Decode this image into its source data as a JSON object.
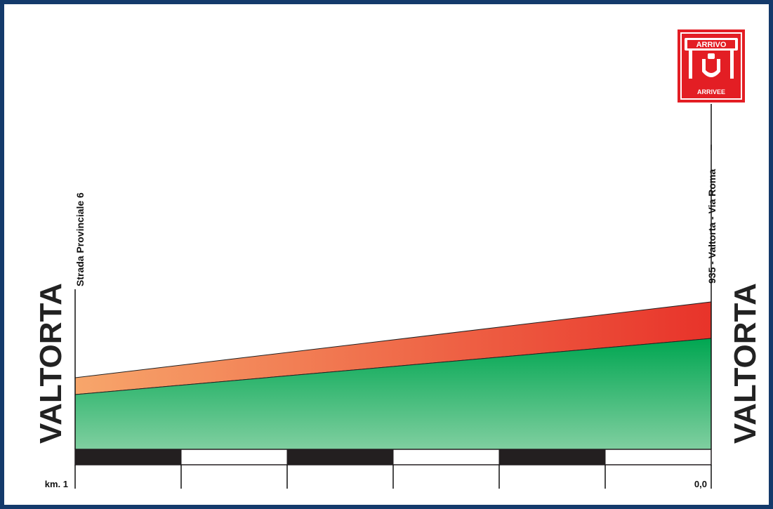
{
  "start": {
    "town": "VALTORTA",
    "label": "Strada Provinciale 6",
    "km": "km. 1"
  },
  "finish": {
    "town": "VALTORTA",
    "label": "935 - Valtorta - Via Roma",
    "km": "0,0"
  },
  "logo": {
    "top_text": "ARRIVO",
    "bottom_text": "ARRIVEE",
    "icon": "finish-arch-icon"
  },
  "colors": {
    "frame": "#143a6b",
    "profile_top_start": "#f7a66b",
    "profile_top_end": "#e8332a",
    "profile_bottom_top": "#00a651",
    "profile_bottom_bottom": "#7dcc9a",
    "logo_red": "#e31e24"
  },
  "scale": {
    "segments": 6,
    "pattern": [
      "black",
      "white",
      "black",
      "white",
      "black",
      "white"
    ]
  }
}
